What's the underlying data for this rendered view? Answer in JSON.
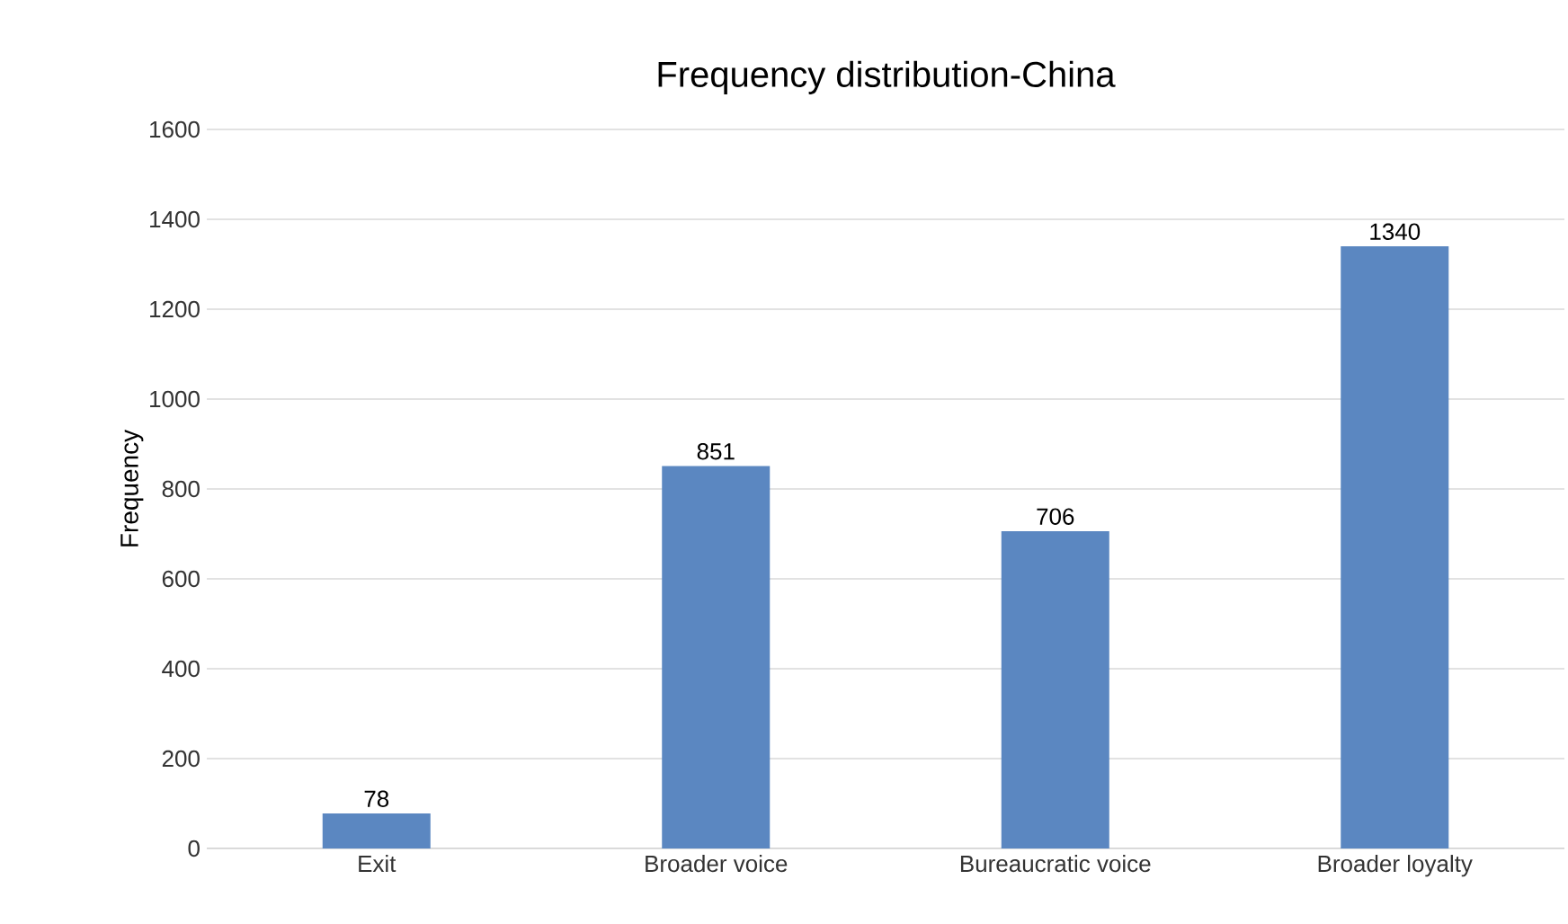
{
  "chart_data": {
    "type": "bar",
    "title": "Frequency distribution-China",
    "ylabel": "Frequency",
    "categories": [
      "Exit",
      "Broader voice",
      "Bureaucratic voice",
      "Broader loyalty"
    ],
    "values": [
      78,
      851,
      706,
      1340
    ],
    "color": "#5b87c1",
    "data_labels": true,
    "ylim": [
      0,
      1600
    ],
    "yticks": [
      0,
      200,
      400,
      600,
      800,
      1000,
      1200,
      1400,
      1600
    ],
    "grid": "y"
  }
}
